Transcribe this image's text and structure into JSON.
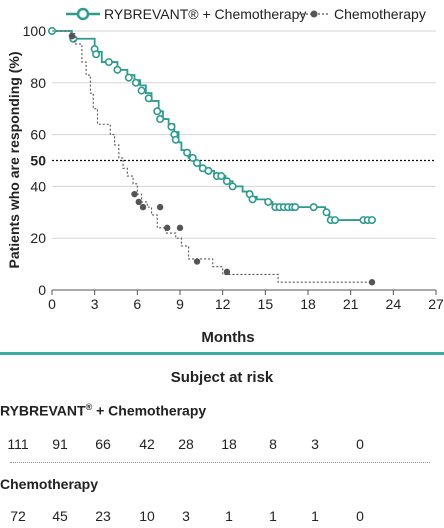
{
  "chart_data": {
    "type": "line",
    "xlabel": "Months",
    "ylabel": "Patients who are responding (%)",
    "xlim": [
      0,
      27
    ],
    "ylim": [
      0,
      100
    ],
    "xticks": [
      0,
      3,
      6,
      9,
      12,
      15,
      18,
      21,
      24,
      27
    ],
    "yticks": [
      0,
      20,
      40,
      50,
      60,
      80,
      100
    ],
    "reference_line": 50,
    "legend_position": "top",
    "series": [
      {
        "name": "RYBREVANT® + Chemotherapy",
        "color": "#2e9b8f",
        "line_style": "solid",
        "marker": "open-circle",
        "steps": [
          [
            0,
            100
          ],
          [
            1.4,
            97
          ],
          [
            3,
            92
          ],
          [
            3.5,
            88
          ],
          [
            4.6,
            85
          ],
          [
            5.3,
            83
          ],
          [
            5.8,
            81
          ],
          [
            6.2,
            79
          ],
          [
            6.6,
            76
          ],
          [
            7.0,
            73
          ],
          [
            7.5,
            69
          ],
          [
            7.8,
            66
          ],
          [
            8.2,
            64
          ],
          [
            8.6,
            61
          ],
          [
            8.9,
            57
          ],
          [
            9.1,
            54
          ],
          [
            9.6,
            51
          ],
          [
            10.0,
            49
          ],
          [
            10.4,
            47
          ],
          [
            10.8,
            46
          ],
          [
            11.4,
            44
          ],
          [
            12.2,
            42
          ],
          [
            12.7,
            40
          ],
          [
            13.4,
            38
          ],
          [
            14.0,
            36
          ],
          [
            14.4,
            35
          ],
          [
            15.0,
            34
          ],
          [
            15.5,
            32
          ],
          [
            19.2,
            30
          ],
          [
            19.5,
            27
          ],
          [
            20.2,
            27
          ],
          [
            22.5,
            27
          ]
        ],
        "censor_marks": [
          [
            0,
            100
          ],
          [
            1.5,
            97
          ],
          [
            3.0,
            93
          ],
          [
            3.1,
            91
          ],
          [
            4.0,
            88
          ],
          [
            4.6,
            85
          ],
          [
            5.4,
            82
          ],
          [
            5.9,
            80
          ],
          [
            6.3,
            77
          ],
          [
            6.8,
            74
          ],
          [
            7.4,
            69
          ],
          [
            7.6,
            66
          ],
          [
            8.4,
            63
          ],
          [
            8.6,
            60
          ],
          [
            8.7,
            58
          ],
          [
            9.5,
            53
          ],
          [
            9.9,
            51
          ],
          [
            10.2,
            49
          ],
          [
            10.6,
            47
          ],
          [
            11.0,
            46
          ],
          [
            11.6,
            44
          ],
          [
            11.9,
            44
          ],
          [
            12.3,
            42
          ],
          [
            12.7,
            40
          ],
          [
            13.9,
            37
          ],
          [
            14.1,
            35
          ],
          [
            15.2,
            34
          ],
          [
            15.7,
            32
          ],
          [
            16.0,
            32
          ],
          [
            16.3,
            32
          ],
          [
            16.6,
            32
          ],
          [
            16.9,
            32
          ],
          [
            17.1,
            32
          ],
          [
            18.4,
            32
          ],
          [
            19.3,
            30
          ],
          [
            19.6,
            27
          ],
          [
            19.9,
            27
          ],
          [
            21.9,
            27
          ],
          [
            22.2,
            27
          ],
          [
            22.5,
            27
          ]
        ]
      },
      {
        "name": "Chemotherapy",
        "color": "#555555",
        "line_style": "dashed",
        "marker": "filled-circle",
        "steps": [
          [
            0,
            100
          ],
          [
            1.3,
            99
          ],
          [
            1.6,
            95
          ],
          [
            2.1,
            88
          ],
          [
            2.4,
            83
          ],
          [
            2.7,
            76
          ],
          [
            2.9,
            70
          ],
          [
            3.2,
            64
          ],
          [
            4.1,
            60
          ],
          [
            4.4,
            56
          ],
          [
            4.7,
            51
          ],
          [
            5.0,
            47
          ],
          [
            5.3,
            44
          ],
          [
            5.7,
            41
          ],
          [
            6.0,
            37
          ],
          [
            6.3,
            34
          ],
          [
            6.7,
            32
          ],
          [
            7.0,
            29
          ],
          [
            7.4,
            24
          ],
          [
            8.0,
            22
          ],
          [
            8.7,
            20
          ],
          [
            9.1,
            17
          ],
          [
            9.6,
            12
          ],
          [
            11.3,
            9
          ],
          [
            12.0,
            6
          ],
          [
            15.9,
            3
          ],
          [
            22.5,
            3
          ]
        ],
        "censor_marks": [
          [
            1.4,
            98
          ],
          [
            5.8,
            37
          ],
          [
            6.1,
            34
          ],
          [
            6.4,
            32
          ],
          [
            7.6,
            32
          ],
          [
            8.1,
            24
          ],
          [
            9.0,
            24
          ],
          [
            10.2,
            11
          ],
          [
            12.3,
            7
          ],
          [
            22.5,
            3
          ]
        ]
      }
    ]
  },
  "risk_table": {
    "title": "Subject at risk",
    "months": [
      0,
      3,
      6,
      9,
      12,
      15,
      18,
      21,
      24
    ],
    "groups": [
      {
        "label_main": "RYBREVANT",
        "label_reg": "®",
        "label_suffix": " + Chemotherapy",
        "counts": [
          "111",
          "91",
          "66",
          "42",
          "28",
          "18",
          "8",
          "3",
          "0"
        ]
      },
      {
        "label_main": "Chemotherapy",
        "label_reg": "",
        "label_suffix": "",
        "counts": [
          "72",
          "45",
          "23",
          "10",
          "3",
          "1",
          "1",
          "1",
          "0"
        ]
      }
    ]
  }
}
